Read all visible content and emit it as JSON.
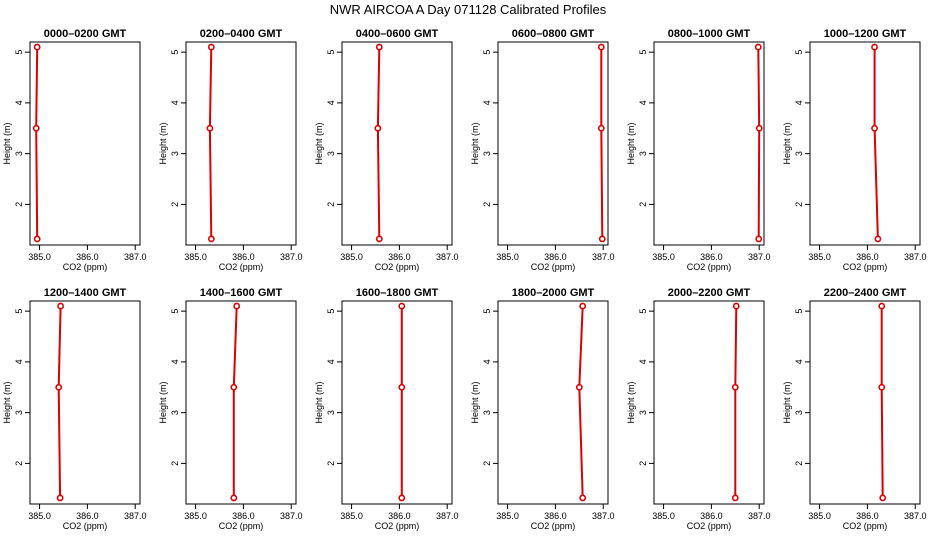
{
  "title": "NWR AIRCOA A  Day 071128  Calibrated Profiles",
  "colors": {
    "profile": "#dd0000",
    "axis": "#000000"
  },
  "chart_data": [
    {
      "type": "line",
      "title": "0000–0200 GMT",
      "xlabel": "CO2 (ppm)",
      "ylabel": "Height (m)",
      "xlim": [
        384.8,
        387.1
      ],
      "ylim": [
        1.2,
        5.2
      ],
      "xticks": [
        "385.0",
        "386.0",
        "387.0"
      ],
      "yticks": [
        "2",
        "3",
        "4",
        "5"
      ],
      "series": [
        {
          "x": [
            384.95,
            384.93,
            384.95
          ],
          "y": [
            1.32,
            3.5,
            5.1
          ]
        }
      ]
    },
    {
      "type": "line",
      "title": "0200–0400 GMT",
      "xlabel": "CO2 (ppm)",
      "ylabel": "Height (m)",
      "xlim": [
        384.8,
        387.1
      ],
      "ylim": [
        1.2,
        5.2
      ],
      "xticks": [
        "385.0",
        "386.0",
        "387.0"
      ],
      "yticks": [
        "2",
        "3",
        "4",
        "5"
      ],
      "series": [
        {
          "x": [
            385.33,
            385.3,
            385.33
          ],
          "y": [
            1.32,
            3.5,
            5.1
          ]
        }
      ]
    },
    {
      "type": "line",
      "title": "0400–0600 GMT",
      "xlabel": "CO2 (ppm)",
      "ylabel": "Height (m)",
      "xlim": [
        384.8,
        387.1
      ],
      "ylim": [
        1.2,
        5.2
      ],
      "xticks": [
        "385.0",
        "386.0",
        "387.0"
      ],
      "yticks": [
        "2",
        "3",
        "4",
        "5"
      ],
      "series": [
        {
          "x": [
            385.58,
            385.55,
            385.58
          ],
          "y": [
            1.32,
            3.5,
            5.1
          ]
        }
      ]
    },
    {
      "type": "line",
      "title": "0600–0800 GMT",
      "xlabel": "CO2 (ppm)",
      "ylabel": "Height (m)",
      "xlim": [
        384.8,
        387.1
      ],
      "ylim": [
        1.2,
        5.2
      ],
      "xticks": [
        "385.0",
        "386.0",
        "387.0"
      ],
      "yticks": [
        "2",
        "3",
        "4",
        "5"
      ],
      "series": [
        {
          "x": [
            386.98,
            386.96,
            386.96
          ],
          "y": [
            1.32,
            3.5,
            5.1
          ]
        }
      ]
    },
    {
      "type": "line",
      "title": "0800–1000 GMT",
      "xlabel": "CO2 (ppm)",
      "ylabel": "Height (m)",
      "xlim": [
        384.8,
        387.1
      ],
      "ylim": [
        1.2,
        5.2
      ],
      "xticks": [
        "385.0",
        "386.0",
        "387.0"
      ],
      "yticks": [
        "2",
        "3",
        "4",
        "5"
      ],
      "series": [
        {
          "x": [
            386.99,
            387.0,
            386.98
          ],
          "y": [
            1.32,
            3.5,
            5.1
          ]
        }
      ]
    },
    {
      "type": "line",
      "title": "1000–1200 GMT",
      "xlabel": "CO2 (ppm)",
      "ylabel": "Height (m)",
      "xlim": [
        384.8,
        387.1
      ],
      "ylim": [
        1.2,
        5.2
      ],
      "xticks": [
        "385.0",
        "386.0",
        "387.0"
      ],
      "yticks": [
        "2",
        "3",
        "4",
        "5"
      ],
      "series": [
        {
          "x": [
            386.22,
            386.15,
            386.15
          ],
          "y": [
            1.32,
            3.5,
            5.1
          ]
        }
      ]
    },
    {
      "type": "line",
      "title": "1200–1400 GMT",
      "xlabel": "CO2 (ppm)",
      "ylabel": "Height (m)",
      "xlim": [
        384.8,
        387.1
      ],
      "ylim": [
        1.2,
        5.2
      ],
      "xticks": [
        "385.0",
        "386.0",
        "387.0"
      ],
      "yticks": [
        "2",
        "3",
        "4",
        "5"
      ],
      "series": [
        {
          "x": [
            385.43,
            385.4,
            385.44
          ],
          "y": [
            1.32,
            3.5,
            5.1
          ]
        }
      ]
    },
    {
      "type": "line",
      "title": "1400–1600 GMT",
      "xlabel": "CO2 (ppm)",
      "ylabel": "Height (m)",
      "xlim": [
        384.8,
        387.1
      ],
      "ylim": [
        1.2,
        5.2
      ],
      "xticks": [
        "385.0",
        "386.0",
        "387.0"
      ],
      "yticks": [
        "2",
        "3",
        "4",
        "5"
      ],
      "series": [
        {
          "x": [
            385.8,
            385.8,
            385.86
          ],
          "y": [
            1.32,
            3.5,
            5.1
          ]
        }
      ]
    },
    {
      "type": "line",
      "title": "1600–1800 GMT",
      "xlabel": "CO2 (ppm)",
      "ylabel": "Height (m)",
      "xlim": [
        384.8,
        387.1
      ],
      "ylim": [
        1.2,
        5.2
      ],
      "xticks": [
        "385.0",
        "386.0",
        "387.0"
      ],
      "yticks": [
        "2",
        "3",
        "4",
        "5"
      ],
      "series": [
        {
          "x": [
            386.05,
            386.05,
            386.05
          ],
          "y": [
            1.32,
            3.5,
            5.1
          ]
        }
      ]
    },
    {
      "type": "line",
      "title": "1800–2000 GMT",
      "xlabel": "CO2 (ppm)",
      "ylabel": "Height (m)",
      "xlim": [
        384.8,
        387.1
      ],
      "ylim": [
        1.2,
        5.2
      ],
      "xticks": [
        "385.0",
        "386.0",
        "387.0"
      ],
      "yticks": [
        "2",
        "3",
        "4",
        "5"
      ],
      "series": [
        {
          "x": [
            386.57,
            386.5,
            386.57
          ],
          "y": [
            1.32,
            3.5,
            5.1
          ]
        }
      ]
    },
    {
      "type": "line",
      "title": "2000–2200 GMT",
      "xlabel": "CO2 (ppm)",
      "ylabel": "Height (m)",
      "xlim": [
        384.8,
        387.1
      ],
      "ylim": [
        1.2,
        5.2
      ],
      "xticks": [
        "385.0",
        "386.0",
        "387.0"
      ],
      "yticks": [
        "2",
        "3",
        "4",
        "5"
      ],
      "series": [
        {
          "x": [
            386.5,
            386.5,
            386.52
          ],
          "y": [
            1.32,
            3.5,
            5.1
          ]
        }
      ]
    },
    {
      "type": "line",
      "title": "2200–2400 GMT",
      "xlabel": "CO2 (ppm)",
      "ylabel": "Height (m)",
      "xlim": [
        384.8,
        387.1
      ],
      "ylim": [
        1.2,
        5.2
      ],
      "xticks": [
        "385.0",
        "386.0",
        "387.0"
      ],
      "yticks": [
        "2",
        "3",
        "4",
        "5"
      ],
      "series": [
        {
          "x": [
            386.32,
            386.3,
            386.3
          ],
          "y": [
            1.32,
            3.5,
            5.1
          ]
        }
      ]
    }
  ]
}
